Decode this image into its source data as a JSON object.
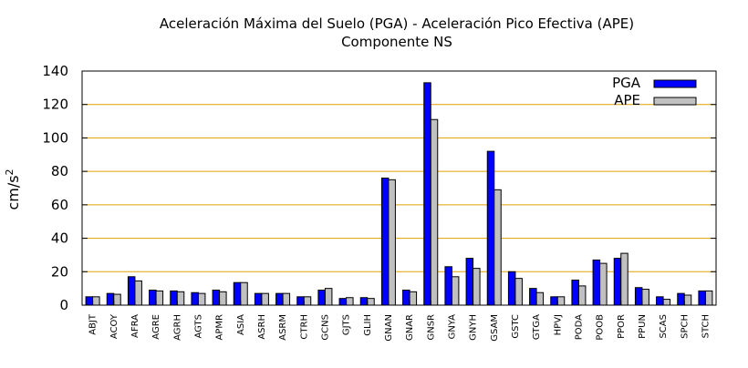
{
  "chart_data": {
    "type": "bar",
    "title": "Aceleración Máxima del Suelo (PGA) -  Aceleración Pico Efectiva (APE)",
    "subtitle": "Componente NS",
    "ylabel": "cm/s",
    "ylabel_superscript": "2",
    "xlabel": "",
    "ylim": [
      0,
      140
    ],
    "yticks": [
      0,
      20,
      40,
      60,
      80,
      100,
      120,
      140
    ],
    "grid": "horizontal",
    "grid_color": "#e0a000",
    "legend_position": "top-right",
    "categories": [
      "ABJT",
      "ACOY",
      "AFRA",
      "AGRE",
      "AGRH",
      "AGTS",
      "APMR",
      "ASIA",
      "ASRH",
      "ASRM",
      "CTRH",
      "GCNS",
      "GJTS",
      "GLIH",
      "GNAN",
      "GNAR",
      "GNSR",
      "GNYA",
      "GNYH",
      "GSAM",
      "GSTC",
      "GTGA",
      "HPVJ",
      "PODA",
      "POOB",
      "PPOR",
      "PPUN",
      "SCAS",
      "SPCH",
      "STCH"
    ],
    "series": [
      {
        "name": "PGA",
        "color": "#0000ff",
        "values": [
          5,
          7,
          17,
          9,
          8.5,
          7.5,
          9,
          13.5,
          7,
          7,
          5,
          9,
          4,
          4.5,
          76,
          9,
          133,
          23,
          28,
          92,
          20,
          10,
          5,
          15,
          27,
          28,
          10.5,
          5,
          7,
          8.5
        ]
      },
      {
        "name": "APE",
        "color": "#c0c0c0",
        "values": [
          5,
          6.5,
          14.5,
          8.5,
          8,
          7,
          8,
          13.5,
          7,
          7,
          5,
          10,
          4.5,
          4,
          75,
          8,
          111,
          17,
          22,
          69,
          16,
          7.5,
          5,
          11.5,
          25,
          31,
          9.5,
          3.5,
          6,
          8.5
        ]
      }
    ]
  }
}
